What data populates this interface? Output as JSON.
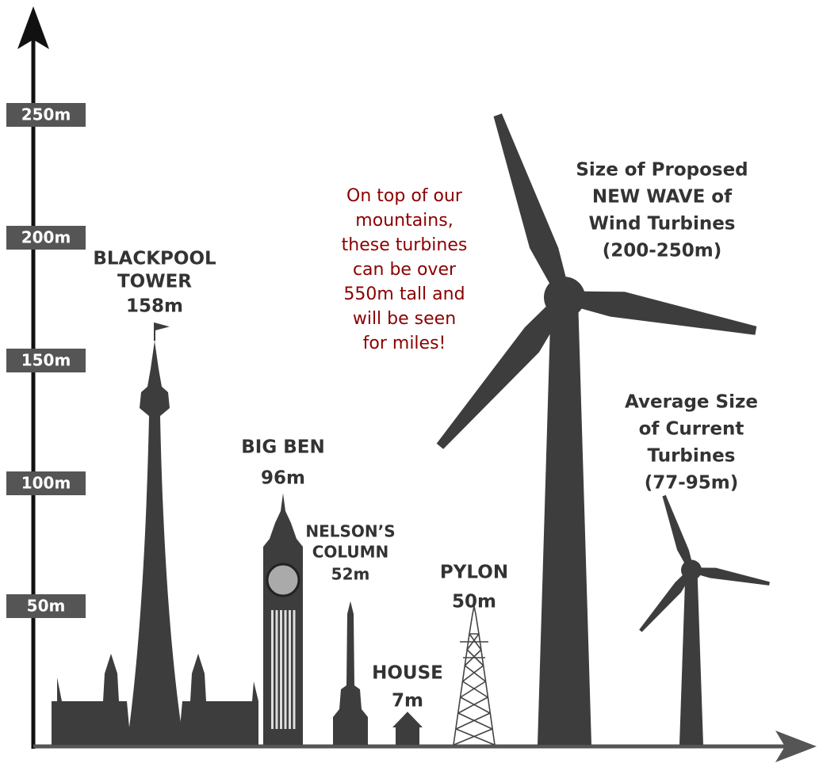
{
  "chart_data": {
    "type": "pictorial",
    "categories": [
      [
        "BLACKPOOL",
        "TOWER"
      ],
      [
        "BIG BEN"
      ],
      [
        "NELSON’S",
        "COLUMN"
      ],
      [
        "HOUSE"
      ],
      [
        "PYLON"
      ]
    ],
    "values": [
      158,
      96,
      52,
      7,
      50
    ],
    "value_labels": [
      "158m",
      "96m",
      "52m",
      "7m",
      "50m"
    ],
    "ranges": [
      {
        "name": [
          "Size of Proposed",
          "NEW WAVE of",
          "Wind Turbines"
        ],
        "values": [
          200,
          250
        ],
        "value_label": "(200-250m)"
      },
      {
        "name": [
          "Average Size",
          "of Current",
          "Turbines"
        ],
        "values": [
          77,
          95
        ],
        "value_label": "(77-95m)"
      }
    ],
    "annotation": [
      "On top of our",
      "mountains,",
      "these turbines",
      "can be over",
      "550m tall and",
      "will be seen",
      "for miles!"
    ],
    "annotation_color": "#8b0000",
    "color": "#3d3d3d",
    "ylim": [
      0,
      300
    ],
    "yticks": [
      {
        "value": 50,
        "label": "50m"
      },
      {
        "value": 100,
        "label": "100m"
      },
      {
        "value": 150,
        "label": "150m"
      },
      {
        "value": 200,
        "label": "200m"
      },
      {
        "value": 250,
        "label": "250m"
      }
    ]
  }
}
